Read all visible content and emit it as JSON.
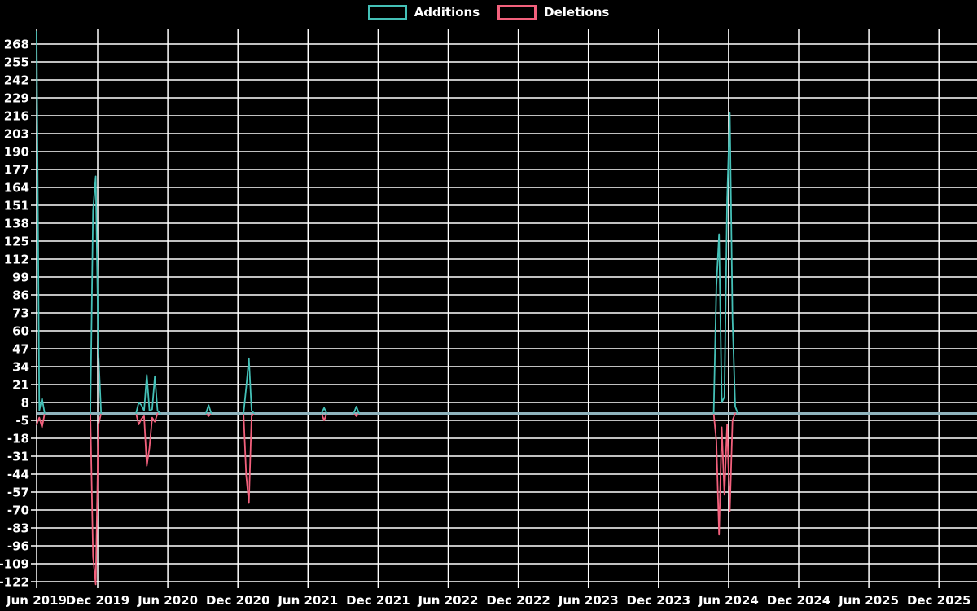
{
  "legend": {
    "items": [
      {
        "label": "Additions",
        "color": "#44c0b7"
      },
      {
        "label": "Deletions",
        "color": "#f2607c"
      }
    ]
  },
  "chart_data": {
    "type": "line",
    "title": "",
    "x_unit": "weeks since Jun 2019",
    "x_ticks": [
      "Jun 2019",
      "Dec 2019",
      "Jun 2020",
      "Dec 2020",
      "Jun 2021",
      "Dec 2021",
      "Jun 2022",
      "Dec 2022",
      "Jun 2023",
      "Dec 2023",
      "Jun 2024",
      "Dec 2024",
      "Jun 2025",
      "Dec 2025"
    ],
    "y_ticks": [
      268,
      255,
      242,
      229,
      216,
      203,
      190,
      177,
      164,
      151,
      138,
      125,
      112,
      99,
      86,
      73,
      60,
      47,
      34,
      21,
      8,
      -5,
      -18,
      -31,
      -44,
      -57,
      -70,
      -83,
      -96,
      -109,
      -122
    ],
    "ylim": [
      -124,
      279
    ],
    "xlim_weeks": [
      0,
      350
    ],
    "grid": true,
    "legend_position": "top-center",
    "background": "#000000",
    "grid_color": "#ffffff",
    "zero_line_color": "#8fb4be",
    "series": [
      {
        "name": "Additions",
        "color": "#44c0b7",
        "points": [
          [
            0,
            277
          ],
          [
            1,
            2
          ],
          [
            2,
            11
          ],
          [
            3,
            0
          ],
          [
            20,
            0
          ],
          [
            21,
            147
          ],
          [
            22,
            172
          ],
          [
            23,
            44
          ],
          [
            24,
            0
          ],
          [
            37,
            0
          ],
          [
            38,
            8
          ],
          [
            39,
            6
          ],
          [
            40,
            2
          ],
          [
            41,
            28
          ],
          [
            42,
            2
          ],
          [
            43,
            3
          ],
          [
            44,
            27
          ],
          [
            45,
            2
          ],
          [
            46,
            0
          ],
          [
            63,
            0
          ],
          [
            64,
            6
          ],
          [
            65,
            0
          ],
          [
            77,
            0
          ],
          [
            78,
            19
          ],
          [
            79,
            40
          ],
          [
            80,
            2
          ],
          [
            81,
            0
          ],
          [
            106,
            0
          ],
          [
            107,
            4
          ],
          [
            108,
            0
          ],
          [
            118,
            0
          ],
          [
            119,
            5
          ],
          [
            120,
            0
          ],
          [
            252,
            0
          ],
          [
            253,
            92
          ],
          [
            254,
            130
          ],
          [
            255,
            8
          ],
          [
            256,
            12
          ],
          [
            257,
            155
          ],
          [
            258,
            218
          ],
          [
            259,
            69
          ],
          [
            260,
            5
          ],
          [
            261,
            0
          ],
          [
            350,
            0
          ]
        ]
      },
      {
        "name": "Deletions",
        "color": "#f2607c",
        "points": [
          [
            0,
            -8
          ],
          [
            1,
            -3
          ],
          [
            2,
            -10
          ],
          [
            3,
            0
          ],
          [
            20,
            0
          ],
          [
            21,
            -104
          ],
          [
            22,
            -124
          ],
          [
            23,
            -8
          ],
          [
            24,
            0
          ],
          [
            37,
            0
          ],
          [
            38,
            -8
          ],
          [
            39,
            -4
          ],
          [
            40,
            -2
          ],
          [
            41,
            -38
          ],
          [
            42,
            -25
          ],
          [
            43,
            -3
          ],
          [
            44,
            -6
          ],
          [
            45,
            0
          ],
          [
            63,
            0
          ],
          [
            64,
            -2
          ],
          [
            65,
            0
          ],
          [
            77,
            0
          ],
          [
            78,
            -45
          ],
          [
            79,
            -65
          ],
          [
            80,
            -2
          ],
          [
            81,
            0
          ],
          [
            106,
            0
          ],
          [
            107,
            -5
          ],
          [
            108,
            0
          ],
          [
            118,
            0
          ],
          [
            119,
            -2
          ],
          [
            120,
            0
          ],
          [
            252,
            0
          ],
          [
            253,
            -20
          ],
          [
            254,
            -88
          ],
          [
            255,
            -10
          ],
          [
            256,
            -59
          ],
          [
            257,
            -8
          ],
          [
            258,
            -71
          ],
          [
            259,
            -5
          ],
          [
            260,
            0
          ],
          [
            350,
            0
          ]
        ]
      }
    ]
  }
}
